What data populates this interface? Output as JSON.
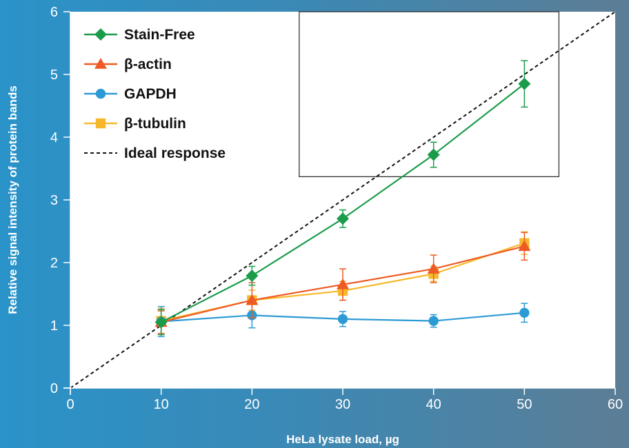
{
  "chart_data": {
    "type": "line",
    "xlabel": "HeLa lysate load, µg",
    "ylabel": "Relative signal intensity of protein bands",
    "xlim": [
      0,
      60
    ],
    "ylim": [
      0,
      6
    ],
    "x_ticks": [
      "0",
      "10",
      "20",
      "30",
      "40",
      "50",
      "60"
    ],
    "y_ticks": [
      "0",
      "1",
      "2",
      "3",
      "4",
      "5",
      "6"
    ],
    "grid": false,
    "legend_position": "top-left",
    "x": [
      10,
      20,
      30,
      40,
      50
    ],
    "series": [
      {
        "name": "Stain-Free",
        "color": "#1a9c4a",
        "marker": "diamond",
        "values": [
          1.05,
          1.79,
          2.7,
          3.72,
          4.85
        ],
        "errors": [
          0.2,
          0.15,
          0.14,
          0.2,
          0.37
        ]
      },
      {
        "name": "β-actin",
        "color": "#ee5a24",
        "marker": "triangle",
        "values": [
          1.05,
          1.4,
          1.65,
          1.9,
          2.26
        ],
        "errors": [
          0.18,
          0.28,
          0.25,
          0.22,
          0.22
        ]
      },
      {
        "name": "GAPDH",
        "color": "#2c9ad4",
        "marker": "circle",
        "values": [
          1.06,
          1.16,
          1.1,
          1.07,
          1.2
        ],
        "errors": [
          0.24,
          0.2,
          0.12,
          0.1,
          0.15
        ]
      },
      {
        "name": "β-tubulin",
        "color": "#f6b82a",
        "marker": "square",
        "values": [
          1.07,
          1.4,
          1.55,
          1.82,
          2.31
        ],
        "errors": [
          0.2,
          0.16,
          0.15,
          0.12,
          0.18
        ]
      }
    ],
    "ideal": {
      "name": "Ideal response",
      "color": "#111111",
      "x": [
        0,
        60
      ],
      "y": [
        0,
        6
      ]
    },
    "inset_box": {
      "x": [
        25.2,
        53.8
      ],
      "y": [
        3.37,
        6.0
      ]
    }
  }
}
